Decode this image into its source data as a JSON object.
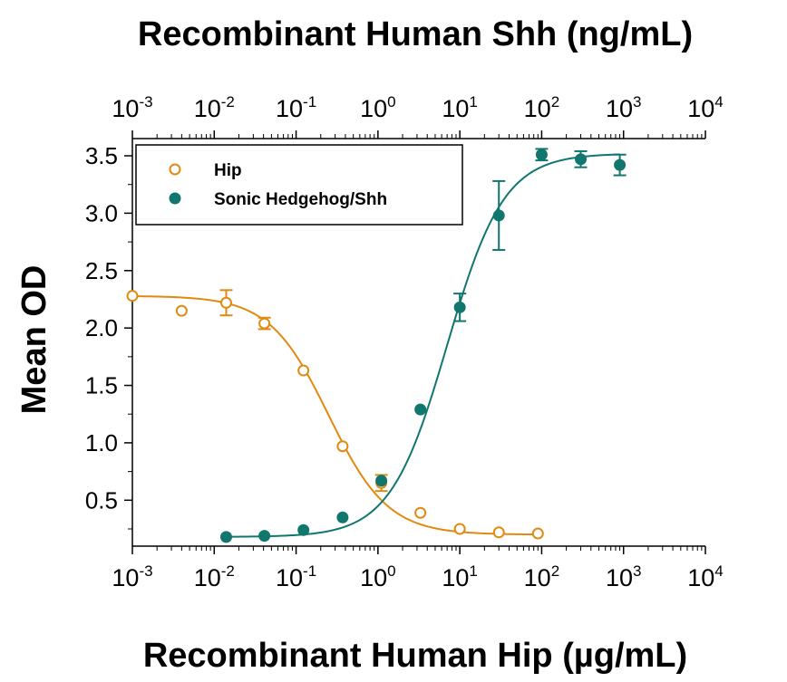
{
  "chart_data": {
    "type": "scatter",
    "title_top": "Recombinant Human Shh (ng/mL)",
    "xlabel": "Recombinant Human Hip (µg/mL)",
    "ylabel": "Mean OD",
    "x_scale": "log",
    "xlim": [
      0.001,
      10000
    ],
    "ylim": [
      0.1,
      3.65
    ],
    "x_ticks": [
      {
        "base": "10",
        "exp": "-3",
        "value": 0.001
      },
      {
        "base": "10",
        "exp": "-2",
        "value": 0.01
      },
      {
        "base": "10",
        "exp": "-1",
        "value": 0.1
      },
      {
        "base": "10",
        "exp": "0",
        "value": 1
      },
      {
        "base": "10",
        "exp": "1",
        "value": 10
      },
      {
        "base": "10",
        "exp": "2",
        "value": 100
      },
      {
        "base": "10",
        "exp": "3",
        "value": 1000
      },
      {
        "base": "10",
        "exp": "4",
        "value": 10000
      }
    ],
    "y_ticks": [
      "0.5",
      "1.0",
      "1.5",
      "2.0",
      "2.5",
      "3.0",
      "3.5"
    ],
    "legend": {
      "position": "top-left"
    },
    "series": [
      {
        "name": "Hip",
        "color": "#E08A10",
        "marker": "open-circle",
        "axis": "bottom",
        "points": [
          {
            "x": 0.001,
            "y": 2.28,
            "err": 0
          },
          {
            "x": 0.004,
            "y": 2.15,
            "err": 0
          },
          {
            "x": 0.014,
            "y": 2.22,
            "err": 0.11
          },
          {
            "x": 0.041,
            "y": 2.04,
            "err": 0.05
          },
          {
            "x": 0.123,
            "y": 1.63,
            "err": 0
          },
          {
            "x": 0.37,
            "y": 0.97,
            "err": 0
          },
          {
            "x": 1.1,
            "y": 0.65,
            "err": 0.07
          },
          {
            "x": 3.3,
            "y": 0.39,
            "err": 0
          },
          {
            "x": 10,
            "y": 0.25,
            "err": 0
          },
          {
            "x": 30,
            "y": 0.22,
            "err": 0
          },
          {
            "x": 90,
            "y": 0.21,
            "err": 0
          }
        ],
        "curve": {
          "bottom": 0.2,
          "top": 2.28,
          "ec50": 0.25,
          "hill": -1.2
        }
      },
      {
        "name": "Sonic Hedgehog/Shh",
        "color": "#11776E",
        "marker": "filled-circle",
        "axis": "top",
        "points": [
          {
            "x": 0.014,
            "y": 0.18,
            "err": 0
          },
          {
            "x": 0.041,
            "y": 0.19,
            "err": 0
          },
          {
            "x": 0.123,
            "y": 0.24,
            "err": 0
          },
          {
            "x": 0.37,
            "y": 0.35,
            "err": 0
          },
          {
            "x": 1.1,
            "y": 0.67,
            "err": 0
          },
          {
            "x": 3.3,
            "y": 1.29,
            "err": 0
          },
          {
            "x": 10,
            "y": 2.18,
            "err": 0.12
          },
          {
            "x": 30,
            "y": 2.98,
            "err": 0.3
          },
          {
            "x": 100,
            "y": 3.51,
            "err": 0.05
          },
          {
            "x": 300,
            "y": 3.47,
            "err": 0.07
          },
          {
            "x": 900,
            "y": 3.42,
            "err": 0.09
          }
        ],
        "curve": {
          "bottom": 0.18,
          "top": 3.52,
          "ec50": 7,
          "hill": 1.25
        }
      }
    ]
  }
}
